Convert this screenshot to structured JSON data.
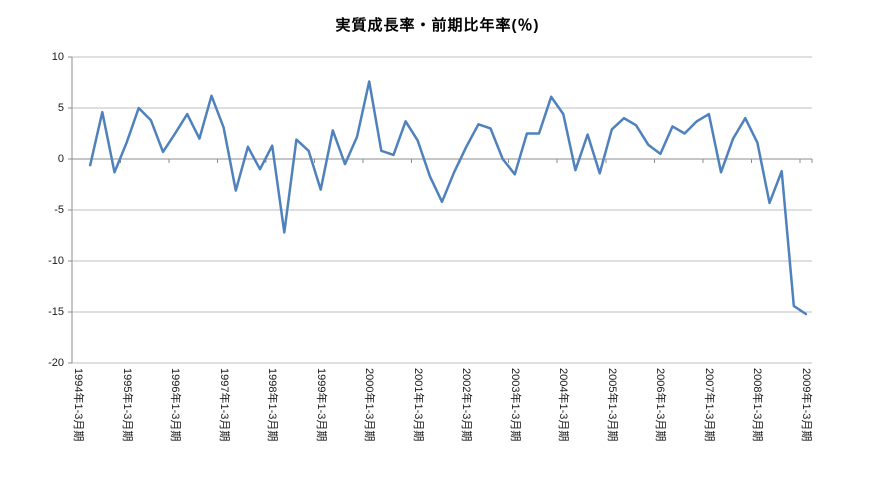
{
  "title": "実質成長率・前期比年率(％)",
  "chart_data": {
    "type": "line",
    "title": "実質成長率・前期比年率(％)",
    "series": [
      {
        "name": "実質成長率・前期比年率",
        "values": [
          null,
          -0.6,
          4.6,
          -1.3,
          1.6,
          5.0,
          3.8,
          0.7,
          2.5,
          4.4,
          2.0,
          6.2,
          3.1,
          -3.1,
          1.2,
          -1.0,
          1.3,
          -7.2,
          1.9,
          0.8,
          -3.0,
          2.8,
          -0.5,
          2.2,
          7.6,
          0.8,
          0.4,
          3.7,
          1.8,
          -1.7,
          -4.2,
          -1.3,
          1.2,
          3.4,
          3.0,
          0.0,
          -1.5,
          2.5,
          2.5,
          6.1,
          4.4,
          -1.1,
          2.4,
          -1.4,
          2.9,
          4.0,
          3.3,
          1.4,
          0.5,
          3.2,
          2.5,
          3.7,
          4.4,
          -1.3,
          2.0,
          4.0,
          1.6,
          -4.3,
          -1.2,
          -14.4,
          -15.2
        ]
      }
    ],
    "n_points": 61,
    "points_per_label": 4,
    "x_tick_labels": [
      "1994年1-3月期",
      "1995年1-3月期",
      "1996年1-3月期",
      "1997年1-3月期",
      "1998年1-3月期",
      "1999年1-3月期",
      "2000年1-3月期",
      "2001年1-3月期",
      "2002年1-3月期",
      "2003年1-3月期",
      "2004年1-3月期",
      "2005年1-3月期",
      "2006年1-3月期",
      "2007年1-3月期",
      "2008年1-3月期",
      "2009年1-3月期"
    ],
    "y_tick_labels": [
      "10",
      "5",
      "0",
      "-5",
      "-10",
      "-15",
      "-20"
    ],
    "y_ticks": [
      10,
      5,
      0,
      -5,
      -10,
      -15,
      -20
    ],
    "ylim": [
      -20,
      10
    ],
    "grid": true,
    "legend": "none",
    "line_color": "#4F81BD",
    "grid_color": "#BFBFBF",
    "axis_color": "#8C8C8C",
    "background_color": "#FFFFFF"
  }
}
